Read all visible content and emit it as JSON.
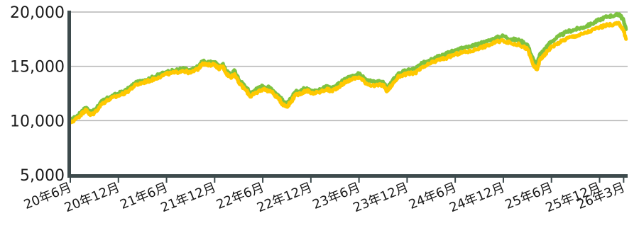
{
  "chart_data": {
    "type": "line",
    "title": "",
    "xlabel": "",
    "ylabel": "",
    "ylim": [
      5000,
      20000
    ],
    "y_ticks": [
      "5,000",
      "10,000",
      "15,000",
      "20,000"
    ],
    "y_tick_values": [
      5000,
      10000,
      15000,
      20000
    ],
    "x_ticks": [
      "20年6月",
      "20年12月",
      "21年6月",
      "21年12月",
      "22年6月",
      "22年12月",
      "23年6月",
      "23年12月",
      "24年6月",
      "24年12月",
      "25年6月",
      "25年12月",
      "26年3月"
    ],
    "x_tick_values": [
      0,
      6,
      12,
      18,
      24,
      30,
      36,
      42,
      48,
      54,
      60,
      66,
      69
    ],
    "xlim": [
      0,
      69.5
    ],
    "grid": true,
    "colors": {
      "green": "#7dc242",
      "yellow": "#ffc800",
      "axis": "#3d4a4c",
      "grid": "#b5b5b5"
    },
    "series": [
      {
        "color": "#7dc242",
        "x": [
          0,
          1,
          1.5,
          2,
          2.5,
          3,
          4,
          5,
          6,
          7,
          8,
          9,
          10,
          11,
          12,
          13,
          14,
          15,
          16,
          16.5,
          17,
          18,
          18.5,
          19,
          19.5,
          20,
          20.5,
          21,
          22,
          22.5,
          23,
          24,
          25,
          26,
          26.5,
          27,
          27.5,
          28,
          29,
          29.5,
          30,
          31,
          32,
          32.5,
          33,
          34,
          35,
          36,
          37,
          38,
          39,
          39.5,
          40,
          41,
          42,
          43,
          44,
          45,
          46,
          47,
          48,
          49,
          50,
          51,
          52,
          53,
          54,
          55,
          56,
          57,
          57.8,
          58.2,
          58.6,
          59,
          59.5,
          60,
          61,
          62,
          63,
          64,
          65,
          66,
          67,
          68,
          68.5,
          69,
          69.3
        ],
        "values": [
          10000,
          10500,
          10900,
          11200,
          10700,
          11000,
          11800,
          12200,
          12500,
          12800,
          13400,
          13700,
          13900,
          14200,
          14500,
          14600,
          14800,
          14600,
          15000,
          15500,
          15300,
          15400,
          15000,
          15200,
          14500,
          14200,
          14600,
          13800,
          13000,
          12500,
          12800,
          13200,
          13000,
          12300,
          11800,
          11500,
          12000,
          12600,
          12900,
          13000,
          12700,
          12800,
          13200,
          12900,
          13100,
          13700,
          14100,
          14300,
          13700,
          13500,
          13600,
          12900,
          13500,
          14400,
          14600,
          14800,
          15300,
          15700,
          16000,
          16200,
          16500,
          16700,
          16800,
          17100,
          17300,
          17600,
          17800,
          17500,
          17400,
          17000,
          15500,
          15200,
          16200,
          16400,
          16900,
          17300,
          17800,
          18200,
          18400,
          18600,
          18900,
          19300,
          19600,
          19700,
          19800,
          19200,
          18400
        ]
      },
      {
        "color": "#ffc800",
        "x": [
          0,
          1,
          1.5,
          2,
          2.5,
          3,
          4,
          5,
          6,
          7,
          8,
          9,
          10,
          11,
          12,
          13,
          14,
          15,
          16,
          16.5,
          17,
          18,
          18.5,
          19,
          19.5,
          20,
          20.5,
          21,
          22,
          22.5,
          23,
          24,
          25,
          26,
          26.5,
          27,
          27.5,
          28,
          29,
          29.5,
          30,
          31,
          32,
          32.5,
          33,
          34,
          35,
          36,
          37,
          38,
          39,
          39.5,
          40,
          41,
          42,
          43,
          44,
          45,
          46,
          47,
          48,
          49,
          50,
          51,
          52,
          53,
          54,
          55,
          56,
          57,
          57.8,
          58.2,
          58.6,
          59,
          59.5,
          60,
          61,
          62,
          63,
          64,
          65,
          66,
          67,
          68,
          68.5,
          69,
          69.3
        ],
        "values": [
          9800,
          10300,
          10700,
          11000,
          10500,
          10700,
          11600,
          12000,
          12300,
          12600,
          13200,
          13500,
          13700,
          14000,
          14300,
          14400,
          14600,
          14400,
          14800,
          15300,
          15100,
          15200,
          14800,
          15000,
          14300,
          14000,
          14300,
          13500,
          12700,
          12200,
          12500,
          12900,
          12700,
          12000,
          11500,
          11300,
          11700,
          12300,
          12600,
          12800,
          12500,
          12600,
          12900,
          12700,
          12900,
          13400,
          13800,
          14000,
          13400,
          13200,
          13300,
          12700,
          13200,
          14100,
          14300,
          14400,
          14900,
          15300,
          15600,
          15800,
          16100,
          16300,
          16400,
          16700,
          16900,
          17200,
          17400,
          17100,
          17000,
          16600,
          15000,
          14700,
          15700,
          15900,
          16400,
          16800,
          17200,
          17600,
          17800,
          18000,
          18300,
          18600,
          18800,
          18900,
          18900,
          18300,
          17500
        ]
      }
    ]
  }
}
